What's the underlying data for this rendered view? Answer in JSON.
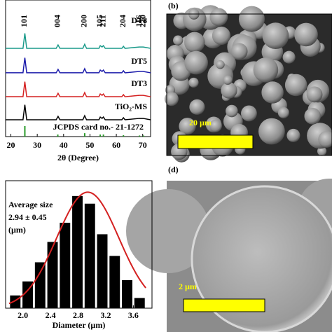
{
  "chart_data": [
    {
      "type": "line",
      "xlabel": "2θ (Degree)",
      "xlim": [
        18,
        73
      ],
      "xticks": [
        20,
        30,
        40,
        50,
        60,
        70
      ],
      "ylim": [
        0,
        100
      ],
      "x": [
        18,
        24.6,
        25.3,
        26.0,
        37.2,
        37.9,
        38.6,
        47.3,
        48.0,
        48.7,
        53.4,
        53.9,
        54.6,
        55.1,
        55.8,
        62.1,
        62.7,
        63.3,
        68.7,
        70.2,
        73
      ],
      "series": [
        {
          "name": "DT8",
          "color": "#1a9a8a",
          "values": [
            64.6,
            64.6,
            75.6,
            64.6,
            64.6,
            67.1,
            64.6,
            64.6,
            67.6,
            64.6,
            64.6,
            66.6,
            65.6,
            66.6,
            64.6,
            64.6,
            66.1,
            64.6,
            65.6,
            65.6,
            64.6
          ]
        },
        {
          "name": "DT5",
          "color": "#1a1aaa",
          "values": [
            46.7,
            46.7,
            57.7,
            46.7,
            46.7,
            49.2,
            46.7,
            46.7,
            49.7,
            46.7,
            46.7,
            48.7,
            47.7,
            48.7,
            46.7,
            46.7,
            48.2,
            46.7,
            47.7,
            47.7,
            46.7
          ]
        },
        {
          "name": "DT3",
          "color": "#d42020",
          "values": [
            29.2,
            29.2,
            40.2,
            29.2,
            29.2,
            31.7,
            29.2,
            29.2,
            32.2,
            29.2,
            29.2,
            31.2,
            30.2,
            31.2,
            29.2,
            29.2,
            30.7,
            29.2,
            30.2,
            30.2,
            29.2
          ]
        },
        {
          "name": "TiO₂-MS",
          "color": "#000000",
          "values": [
            12.3,
            12.3,
            23.3,
            12.3,
            12.3,
            14.8,
            12.3,
            12.3,
            15.3,
            12.3,
            12.3,
            14.3,
            13.3,
            14.3,
            12.3,
            12.3,
            13.8,
            12.3,
            13.3,
            13.3,
            12.3
          ]
        }
      ],
      "reference": {
        "name": "JCPDS card no.- 21-1272",
        "color": "#2a9a2a",
        "x": [
          25.3,
          37.8,
          48.0,
          53.9,
          55.1,
          62.7,
          68.8,
          70.3
        ],
        "values": [
          7.7,
          1.5,
          2.5,
          1.5,
          1.5,
          1.0,
          0.8,
          0.8
        ]
      },
      "peaks": {
        "labels": [
          "101",
          "004",
          "200",
          "105",
          "211",
          "204",
          "116",
          "220"
        ],
        "x": [
          25.3,
          37.8,
          48.0,
          53.9,
          55.1,
          62.7,
          68.8,
          70.3
        ]
      }
    },
    {
      "type": "histogram",
      "xlabel": "Diameter (µm)",
      "xlim": [
        1.75,
        3.87
      ],
      "xticks": [
        {
          "value": 2.0,
          "label": "2.0"
        },
        {
          "value": 2.4,
          "label": "2.4"
        },
        {
          "value": 2.8,
          "label": "2.8"
        },
        {
          "value": 3.2,
          "label": "3.2"
        },
        {
          "value": 3.6,
          "label": "3.6"
        }
      ],
      "ylim": [
        0,
        100
      ],
      "color": "#000000",
      "bins": [
        1.8,
        1.98,
        2.16,
        2.34,
        2.52,
        2.7,
        2.88,
        3.06,
        3.24,
        3.42,
        3.6,
        3.78
      ],
      "values": [
        10,
        21,
        36,
        52,
        67,
        88,
        82,
        58,
        41,
        22,
        8
      ],
      "fit": {
        "mean": 2.94,
        "sd": 0.45,
        "peak": 91,
        "color": "#d42020"
      },
      "annotation": [
        "Average size",
        "2.94 ± 0.45",
        "(µm)"
      ]
    }
  ],
  "images": [
    {
      "label": "(b)",
      "scale_bar": "20 µm"
    },
    {
      "label": "(d)",
      "scale_bar": "2 µm"
    }
  ]
}
